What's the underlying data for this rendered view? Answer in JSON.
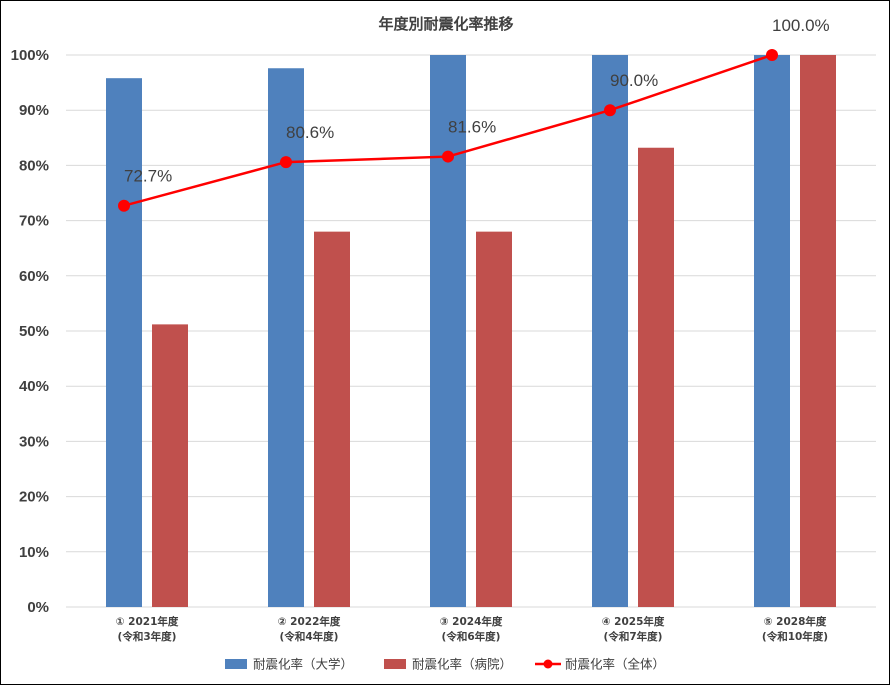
{
  "chart_data": {
    "type": "bar",
    "title": "年度別耐震化率推移",
    "categories": [
      [
        "① 2021年度",
        "(令和3年度)"
      ],
      [
        "② 2022年度",
        "(令和4年度)"
      ],
      [
        "③ 2024年度",
        "(令和6年度)"
      ],
      [
        "④ 2025年度",
        "(令和7年度)"
      ],
      [
        "⑤ 2028年度",
        "(令和10年度)"
      ]
    ],
    "ylim": [
      0,
      100
    ],
    "yticks": [
      "0%",
      "10%",
      "20%",
      "30%",
      "40%",
      "50%",
      "60%",
      "70%",
      "80%",
      "90%",
      "100%"
    ],
    "grid": true,
    "legend_position": "bottom",
    "series": [
      {
        "name": "耐震化率（大学）",
        "kind": "bar",
        "color": "#4f81bd",
        "values": [
          95.8,
          97.6,
          100,
          100,
          100
        ]
      },
      {
        "name": "耐震化率（病院）",
        "kind": "bar",
        "color": "#c0504d",
        "values": [
          51.2,
          68.0,
          68.0,
          83.2,
          100
        ]
      },
      {
        "name": "耐震化率（全体）",
        "kind": "line",
        "color": "#ff0000",
        "values": [
          72.7,
          80.6,
          81.6,
          90.0,
          100.0
        ],
        "labels": [
          "72.7%",
          "80.6%",
          "81.6%",
          "90.0%",
          "100.0%"
        ]
      }
    ]
  }
}
